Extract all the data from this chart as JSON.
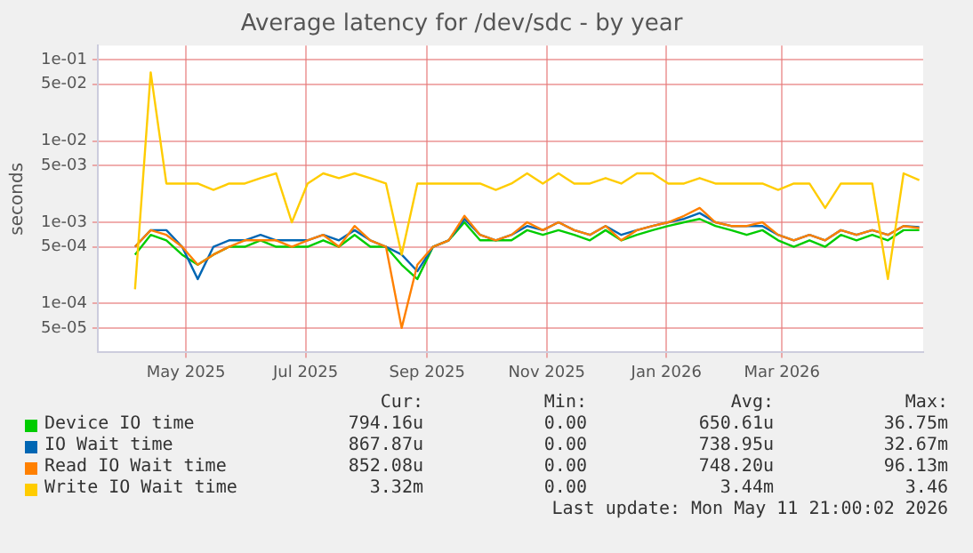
{
  "chart_data": {
    "type": "line",
    "title": "Average latency for /dev/sdc - by year",
    "ylabel": "seconds",
    "log": "y",
    "grid": true,
    "legend": "bottom",
    "marker": "none",
    "line_style": "solid",
    "x": [
      "2025-04-05",
      "2025-04-13",
      "2025-04-21",
      "2025-04-29",
      "2025-05-07",
      "2025-05-15",
      "2025-05-23",
      "2025-05-31",
      "2025-06-08",
      "2025-06-16",
      "2025-06-24",
      "2025-07-02",
      "2025-07-10",
      "2025-07-18",
      "2025-07-26",
      "2025-08-03",
      "2025-08-11",
      "2025-08-19",
      "2025-08-27",
      "2025-09-04",
      "2025-09-12",
      "2025-09-20",
      "2025-09-28",
      "2025-10-06",
      "2025-10-14",
      "2025-10-22",
      "2025-10-30",
      "2025-11-07",
      "2025-11-15",
      "2025-11-23",
      "2025-12-01",
      "2025-12-09",
      "2025-12-17",
      "2025-12-25",
      "2026-01-02",
      "2026-01-10",
      "2026-01-18",
      "2026-01-26",
      "2026-02-03",
      "2026-02-11",
      "2026-02-19",
      "2026-02-27",
      "2026-03-07",
      "2026-03-15",
      "2026-03-23",
      "2026-03-31",
      "2026-04-08",
      "2026-04-16",
      "2026-04-24",
      "2026-05-02",
      "2026-05-10"
    ],
    "xlim": [
      "2025-03-17",
      "2026-05-12"
    ],
    "xticks": [
      {
        "value": "2025-05-01",
        "label": "May 2025"
      },
      {
        "value": "2025-07-01",
        "label": "Jul 2025"
      },
      {
        "value": "2025-09-01",
        "label": "Sep 2025"
      },
      {
        "value": "2025-11-01",
        "label": "Nov 2025"
      },
      {
        "value": "2026-01-01",
        "label": "Jan 2026"
      },
      {
        "value": "2026-03-01",
        "label": "Mar 2026"
      }
    ],
    "ylim": [
      2.5e-05,
      0.15
    ],
    "yticks": [
      {
        "value": 0.1,
        "label": "1e-01"
      },
      {
        "value": 0.05,
        "label": "5e-02"
      },
      {
        "value": 0.01,
        "label": "1e-02"
      },
      {
        "value": 0.005,
        "label": "5e-03"
      },
      {
        "value": 0.001,
        "label": "1e-03"
      },
      {
        "value": 0.0005,
        "label": "5e-04"
      },
      {
        "value": 0.0001,
        "label": "1e-04"
      },
      {
        "value": 5e-05,
        "label": "5e-05"
      }
    ],
    "series": [
      {
        "name": "Device IO time",
        "color": "#00cc00",
        "values": [
          0.0004,
          0.0007,
          0.0006,
          0.0004,
          0.0003,
          0.0004,
          0.0005,
          0.0005,
          0.0006,
          0.0005,
          0.0005,
          0.0005,
          0.0006,
          0.0005,
          0.0007,
          0.0005,
          0.0005,
          0.0003,
          0.0002,
          0.0005,
          0.0006,
          0.001,
          0.0006,
          0.0006,
          0.0006,
          0.0008,
          0.0007,
          0.0008,
          0.0007,
          0.0006,
          0.0008,
          0.0006,
          0.0007,
          0.0008,
          0.0009,
          0.001,
          0.0011,
          0.0009,
          0.0008,
          0.0007,
          0.0008,
          0.0006,
          0.0005,
          0.0006,
          0.0005,
          0.0007,
          0.0006,
          0.0007,
          0.0006,
          0.0008,
          0.0008
        ]
      },
      {
        "name": "IO Wait time",
        "color": "#0066b3",
        "values": [
          0.0005,
          0.0008,
          0.0008,
          0.0005,
          0.0002,
          0.0005,
          0.0006,
          0.0006,
          0.0007,
          0.0006,
          0.0006,
          0.0006,
          0.0007,
          0.0006,
          0.0008,
          0.0006,
          0.0005,
          0.0004,
          0.00025,
          0.0005,
          0.0006,
          0.0011,
          0.0007,
          0.0006,
          0.0007,
          0.0009,
          0.0008,
          0.001,
          0.0008,
          0.0007,
          0.0009,
          0.0007,
          0.0008,
          0.0009,
          0.001,
          0.0011,
          0.0013,
          0.001,
          0.0009,
          0.0009,
          0.0009,
          0.0007,
          0.0006,
          0.0007,
          0.0006,
          0.0008,
          0.0007,
          0.0008,
          0.0007,
          0.0009,
          0.00087
        ]
      },
      {
        "name": "Read IO Wait time",
        "color": "#ff8000",
        "values": [
          0.0005,
          0.0008,
          0.0007,
          0.0005,
          0.0003,
          0.0004,
          0.0005,
          0.0006,
          0.0006,
          0.0006,
          0.0005,
          0.0006,
          0.0007,
          0.0005,
          0.0009,
          0.0006,
          0.0005,
          5e-05,
          0.0003,
          0.0005,
          0.0006,
          0.0012,
          0.0007,
          0.0006,
          0.0007,
          0.001,
          0.0008,
          0.001,
          0.0008,
          0.0007,
          0.0009,
          0.0006,
          0.0008,
          0.0009,
          0.001,
          0.0012,
          0.0015,
          0.001,
          0.0009,
          0.0009,
          0.001,
          0.0007,
          0.0006,
          0.0007,
          0.0006,
          0.0008,
          0.0007,
          0.0008,
          0.0007,
          0.0009,
          0.00085
        ]
      },
      {
        "name": "Write IO Wait time",
        "color": "#ffcc00",
        "values": [
          0.00015,
          0.07,
          0.003,
          0.003,
          0.003,
          0.0025,
          0.003,
          0.003,
          0.0035,
          0.004,
          0.001,
          0.003,
          0.004,
          0.0035,
          0.004,
          0.0035,
          0.003,
          0.0004,
          0.003,
          0.003,
          0.003,
          0.003,
          0.003,
          0.0025,
          0.003,
          0.004,
          0.003,
          0.004,
          0.003,
          0.003,
          0.0035,
          0.003,
          0.004,
          0.004,
          0.003,
          0.003,
          0.0035,
          0.003,
          0.003,
          0.003,
          0.003,
          0.0025,
          0.003,
          0.003,
          0.0015,
          0.003,
          0.003,
          0.003,
          0.0002,
          0.004,
          0.0033
        ]
      }
    ],
    "annotations": [
      "Cur:",
      "Min:",
      "Avg:",
      "Max:",
      "794.16u",
      "0.00",
      "650.61u",
      "36.75m",
      "867.87u",
      "0.00",
      "738.95u",
      "32.67m",
      "852.08u",
      "0.00",
      "748.20u",
      "96.13m",
      "3.32m",
      "0.00",
      "3.44m",
      "3.46",
      "Last update: Mon May 11 21:00:02 2026"
    ]
  }
}
